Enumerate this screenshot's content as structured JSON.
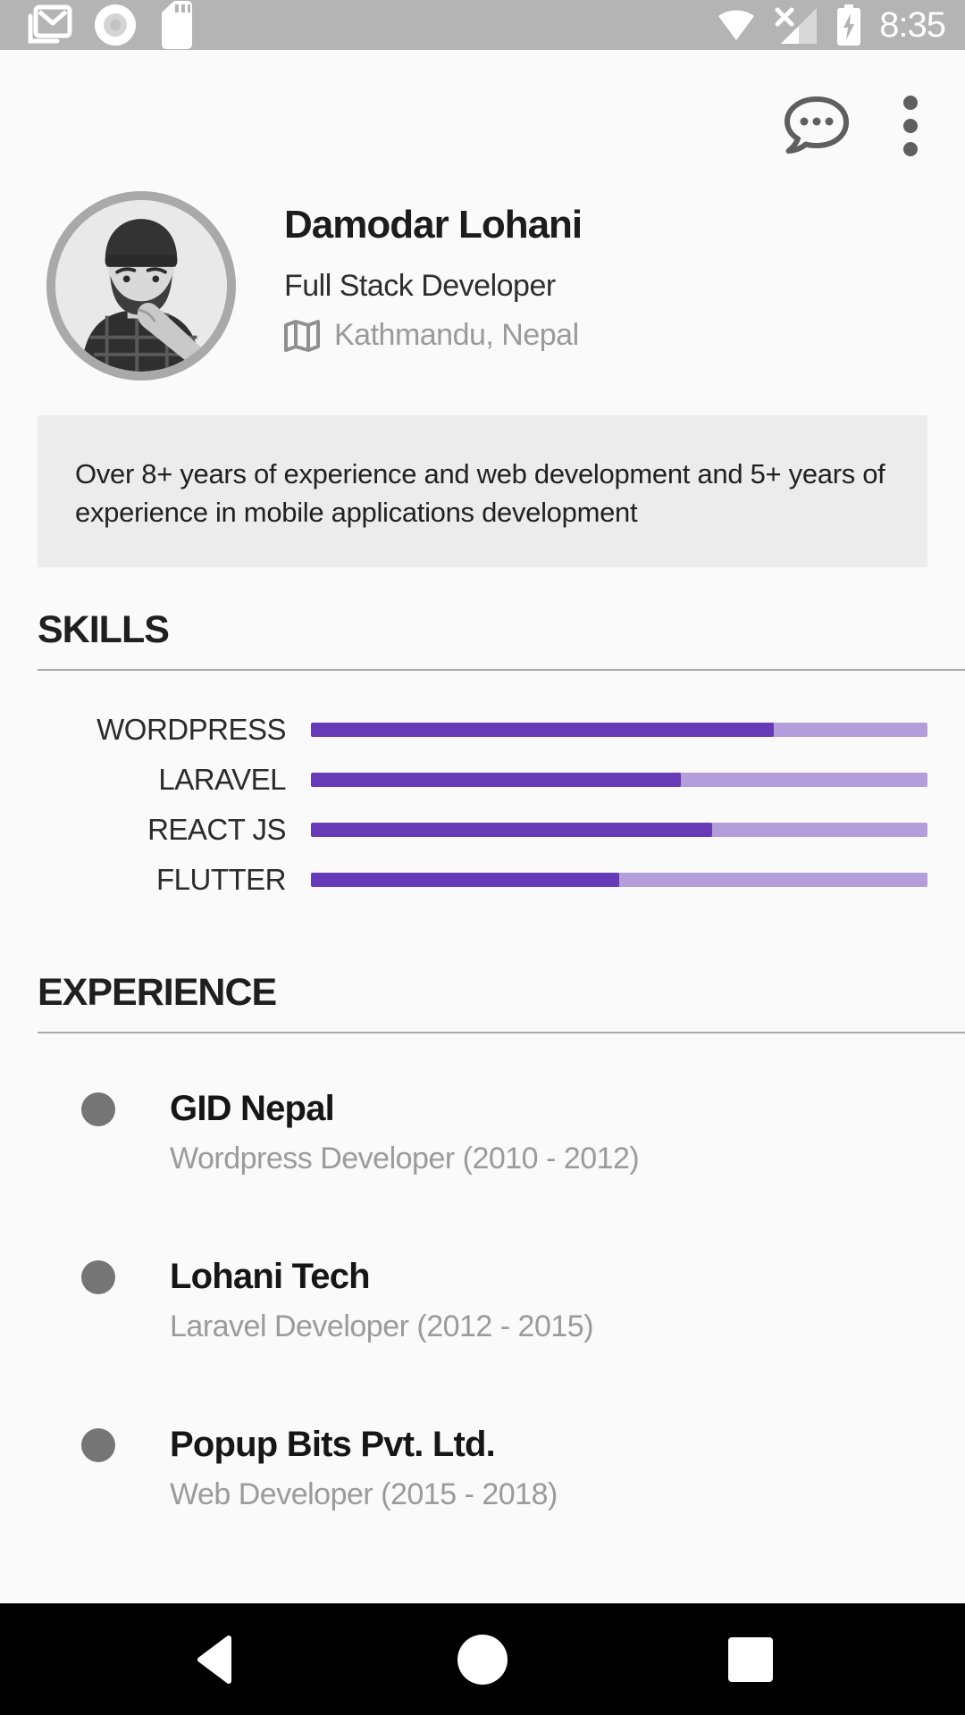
{
  "status_bar": {
    "time": "8:35",
    "left_icons": [
      "gmail-notification-icon",
      "disc-icon",
      "sd-card-icon"
    ],
    "right_icons": [
      "wifi-icon",
      "cell-signal-no-sim-icon",
      "battery-charging-icon"
    ]
  },
  "appbar": {
    "icons": [
      "chat-bubble-icon",
      "overflow-menu-icon"
    ]
  },
  "profile": {
    "name": "Damodar Lohani",
    "title": "Full Stack Developer",
    "location": "Kathmandu, Nepal",
    "location_icon": "map-icon",
    "avatar": "black-and-white portrait of man with beanie and plaid shirt"
  },
  "about": {
    "text": "Over 8+ years of experience and web development and 5+ years of experience in mobile applications development"
  },
  "skills": {
    "heading": "SKILLS",
    "items": [
      {
        "label": "WORDPRESS",
        "percent": 75
      },
      {
        "label": "LARAVEL",
        "percent": 60
      },
      {
        "label": "REACT JS",
        "percent": 65
      },
      {
        "label": "FLUTTER",
        "percent": 50
      }
    ]
  },
  "chart_data": {
    "type": "bar",
    "orientation": "horizontal",
    "title": "SKILLS",
    "categories": [
      "WORDPRESS",
      "LARAVEL",
      "REACT JS",
      "FLUTTER"
    ],
    "values": [
      75,
      60,
      65,
      50
    ],
    "xlim": [
      0,
      100
    ],
    "xlabel": "",
    "ylabel": "",
    "grid": false,
    "legend": false,
    "bar_color": "#673ab7",
    "track_color": "#b39ddb"
  },
  "experience": {
    "heading": "EXPERIENCE",
    "items": [
      {
        "company": "GID Nepal",
        "role": "Wordpress Developer (2010 - 2012)"
      },
      {
        "company": "Lohani Tech",
        "role": "Laravel Developer (2012 - 2015)"
      },
      {
        "company": "Popup Bits Pvt. Ltd.",
        "role": "Web Developer (2015 - 2018)"
      }
    ]
  },
  "nav_bar": {
    "icons": [
      "back-icon",
      "home-icon",
      "recents-icon"
    ]
  },
  "colors": {
    "accent": "#673ab7",
    "accent_light": "#b39ddb",
    "status_bar": "#b4b4b4",
    "background": "#fafafa",
    "bio_background": "#ececec",
    "nav_bar": "#000000"
  }
}
